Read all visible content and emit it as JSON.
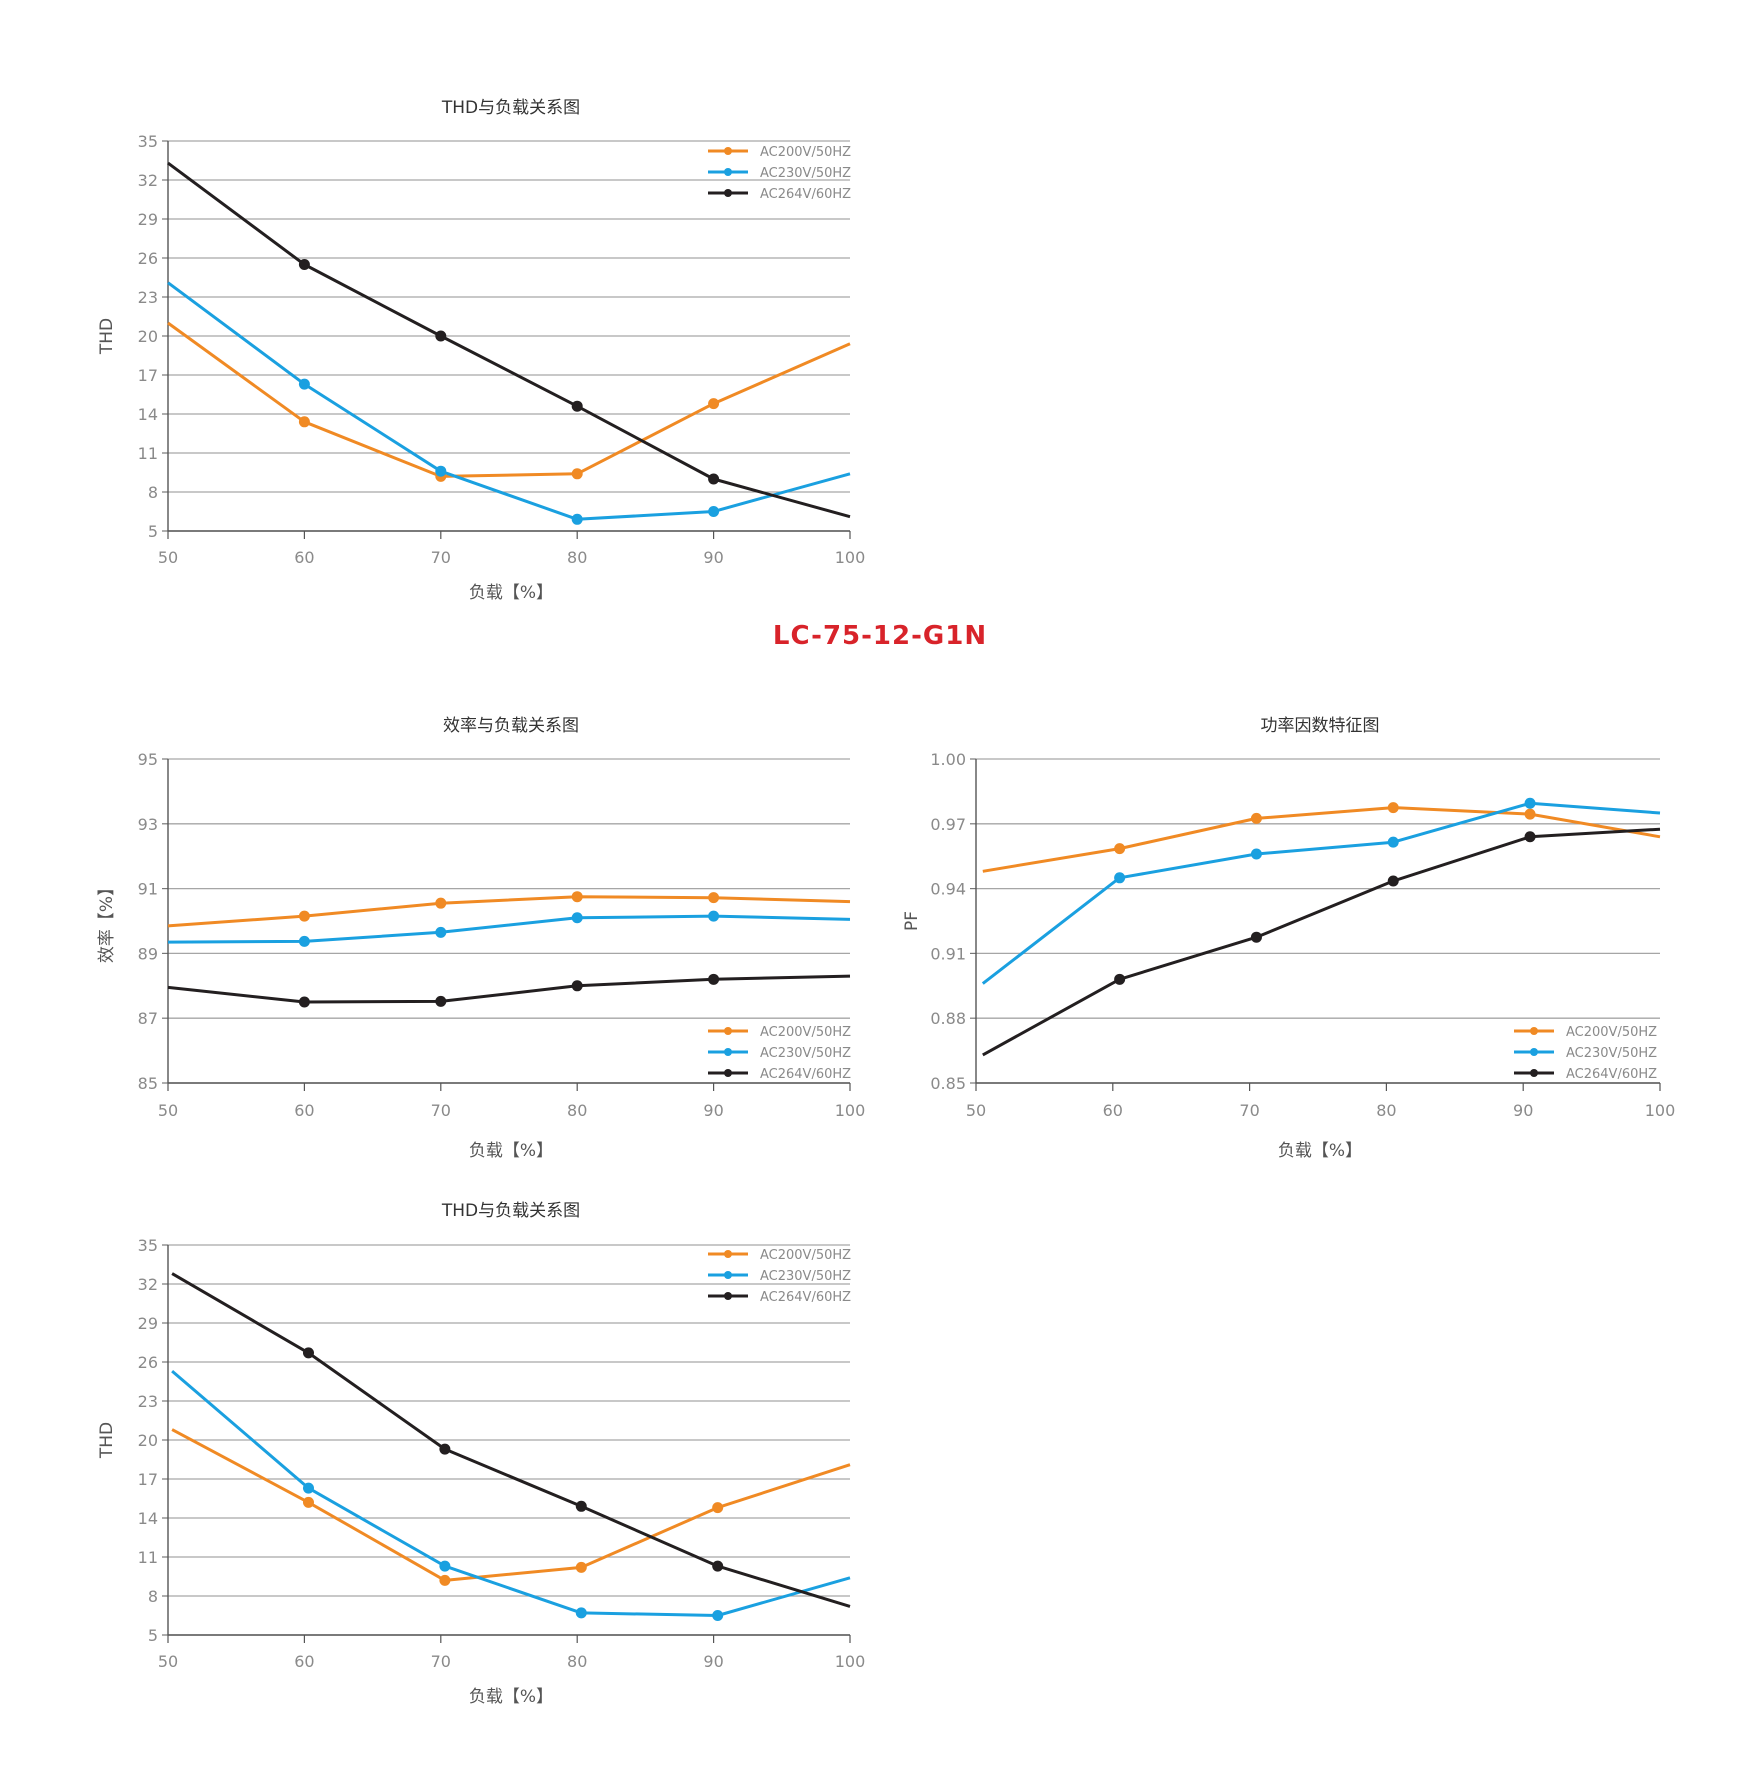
{
  "product_title": "LC-75-12-G1N",
  "colors": {
    "AC200V/50HZ": "#f08a24",
    "AC230V/50HZ": "#1aa0e0",
    "AC264V/60HZ": "#231f20",
    "grid": "#a6a6a6",
    "title_red": "#d8232a"
  },
  "chart_data": [
    {
      "id": "thd-top",
      "type": "line",
      "title": "THD与负载关系图",
      "xlabel": "负载【%】",
      "ylabel": "THD",
      "x_ticks": [
        50,
        60,
        70,
        80,
        90,
        100
      ],
      "y_ticks": [
        "5",
        "8",
        "11",
        "14",
        "17",
        "20",
        "23",
        "26",
        "29",
        "32",
        "35"
      ],
      "xlim": [
        50,
        100
      ],
      "ylim": [
        5,
        35
      ],
      "legend_position": "top-right",
      "series": [
        {
          "name": "AC200V/50HZ",
          "x": [
            50,
            60,
            70,
            80,
            90,
            100
          ],
          "y": [
            21.0,
            13.4,
            9.2,
            9.4,
            14.8,
            19.4
          ],
          "markers": [
            false,
            true,
            true,
            true,
            true,
            false
          ]
        },
        {
          "name": "AC230V/50HZ",
          "x": [
            50,
            60,
            70,
            80,
            90,
            100
          ],
          "y": [
            24.1,
            16.3,
            9.6,
            5.9,
            6.5,
            9.4
          ],
          "markers": [
            false,
            true,
            true,
            true,
            true,
            false
          ]
        },
        {
          "name": "AC264V/60HZ",
          "x": [
            50,
            60,
            70,
            80,
            90,
            100
          ],
          "y": [
            33.3,
            25.5,
            20.0,
            14.6,
            9.0,
            6.1
          ],
          "markers": [
            false,
            true,
            true,
            true,
            true,
            false
          ]
        }
      ]
    },
    {
      "id": "efficiency",
      "type": "line",
      "title": "效率与负载关系图",
      "xlabel": "负载【%】",
      "ylabel": "效率【%】",
      "x_ticks": [
        50,
        60,
        70,
        80,
        90,
        100
      ],
      "y_ticks": [
        "85",
        "87",
        "89",
        "91",
        "93",
        "95"
      ],
      "xlim": [
        50,
        100
      ],
      "ylim": [
        85,
        95
      ],
      "legend_position": "bottom-right",
      "series": [
        {
          "name": "AC200V/50HZ",
          "x": [
            50,
            60,
            70,
            80,
            90,
            100
          ],
          "y": [
            89.85,
            90.15,
            90.55,
            90.75,
            90.72,
            90.6
          ],
          "markers": [
            false,
            true,
            true,
            true,
            true,
            false
          ]
        },
        {
          "name": "AC230V/50HZ",
          "x": [
            50,
            60,
            70,
            80,
            90,
            100
          ],
          "y": [
            89.35,
            89.37,
            89.65,
            90.1,
            90.15,
            90.05
          ],
          "markers": [
            false,
            true,
            true,
            true,
            true,
            false
          ]
        },
        {
          "name": "AC264V/60HZ",
          "x": [
            50,
            60,
            70,
            80,
            90,
            100
          ],
          "y": [
            87.95,
            87.5,
            87.52,
            88.0,
            88.2,
            88.3
          ],
          "markers": [
            false,
            true,
            true,
            true,
            true,
            false
          ]
        }
      ]
    },
    {
      "id": "power-factor",
      "type": "line",
      "title": "功率因数特征图",
      "xlabel": "负载【%】",
      "ylabel": "PF",
      "x_ticks": [
        50,
        60,
        70,
        80,
        90,
        100
      ],
      "y_ticks": [
        "0.85",
        "0.88",
        "0.91",
        "0.94",
        "0.97",
        "1.00"
      ],
      "xlim": [
        50,
        100
      ],
      "ylim": [
        0.85,
        1.0
      ],
      "legend_position": "bottom-right",
      "series": [
        {
          "name": "AC200V/50HZ",
          "x": [
            50.5,
            60.5,
            70.5,
            80.5,
            90.5,
            100
          ],
          "y": [
            0.948,
            0.9585,
            0.9725,
            0.9775,
            0.9745,
            0.964
          ],
          "markers": [
            false,
            true,
            true,
            true,
            true,
            false
          ]
        },
        {
          "name": "AC230V/50HZ",
          "x": [
            50.5,
            60.5,
            70.5,
            80.5,
            90.5,
            100
          ],
          "y": [
            0.896,
            0.945,
            0.956,
            0.9615,
            0.9795,
            0.975
          ],
          "markers": [
            false,
            true,
            true,
            true,
            true,
            false
          ]
        },
        {
          "name": "AC264V/60HZ",
          "x": [
            50.5,
            60.5,
            70.5,
            80.5,
            90.5,
            100
          ],
          "y": [
            0.863,
            0.898,
            0.9175,
            0.9435,
            0.964,
            0.9675
          ],
          "markers": [
            false,
            true,
            true,
            true,
            true,
            false
          ]
        }
      ]
    },
    {
      "id": "thd-bottom",
      "type": "line",
      "title": "THD与负载关系图",
      "xlabel": "负载【%】",
      "ylabel": "THD",
      "x_ticks": [
        50,
        60,
        70,
        80,
        90,
        100
      ],
      "y_ticks": [
        "5",
        "8",
        "11",
        "14",
        "17",
        "20",
        "23",
        "26",
        "29",
        "32",
        "35"
      ],
      "xlim": [
        50,
        100
      ],
      "ylim": [
        5,
        35
      ],
      "legend_position": "top-right",
      "series": [
        {
          "name": "AC200V/50HZ",
          "x": [
            50.3,
            60.3,
            70.3,
            80.3,
            90.3,
            100
          ],
          "y": [
            20.8,
            15.2,
            9.2,
            10.2,
            14.8,
            18.1
          ],
          "markers": [
            false,
            true,
            true,
            true,
            true,
            false
          ]
        },
        {
          "name": "AC230V/50HZ",
          "x": [
            50.3,
            60.3,
            70.3,
            80.3,
            90.3,
            100
          ],
          "y": [
            25.3,
            16.3,
            10.3,
            6.7,
            6.5,
            9.4
          ],
          "markers": [
            false,
            true,
            true,
            true,
            true,
            false
          ]
        },
        {
          "name": "AC264V/60HZ",
          "x": [
            50.3,
            60.3,
            70.3,
            80.3,
            90.3,
            100
          ],
          "y": [
            32.8,
            26.7,
            19.3,
            14.9,
            10.3,
            7.2
          ],
          "markers": [
            false,
            true,
            true,
            true,
            true,
            false
          ]
        }
      ]
    }
  ]
}
